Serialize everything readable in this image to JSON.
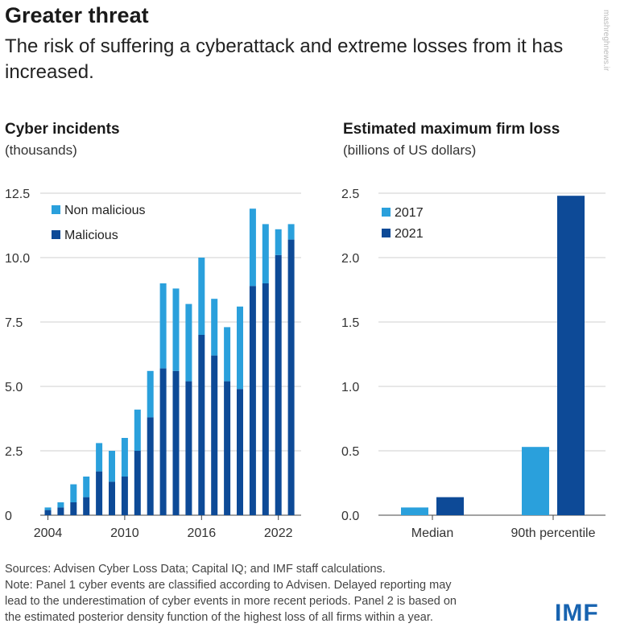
{
  "title": "Greater threat",
  "subtitle": "The risk of suffering a cyberattack and extreme losses from it has increased.",
  "watermark": "mashreghnews.ir",
  "colors": {
    "light": "#2aa0dc",
    "dark": "#0d4a97",
    "grid": "#cfcfcf",
    "axis": "#444444"
  },
  "chart_data": [
    {
      "type": "bar",
      "stacked": true,
      "title": "Cyber incidents",
      "ylabel": "(thousands)",
      "x": [
        2004,
        2005,
        2006,
        2007,
        2008,
        2009,
        2010,
        2011,
        2012,
        2013,
        2014,
        2015,
        2016,
        2017,
        2018,
        2019,
        2020,
        2021,
        2022,
        2023
      ],
      "xticks": [
        2004,
        2010,
        2016,
        2022
      ],
      "yticks": [
        "0",
        "2.5",
        "5.0",
        "7.5",
        "10.0",
        "12.5"
      ],
      "ylim": [
        0,
        12.5
      ],
      "legend": [
        "Non malicious",
        "Malicious"
      ],
      "legend_position": "top-left",
      "series": [
        {
          "name": "Malicious",
          "values": [
            0.2,
            0.3,
            0.5,
            0.7,
            1.7,
            1.3,
            1.5,
            2.5,
            3.8,
            5.7,
            5.6,
            5.2,
            7.0,
            6.2,
            5.2,
            4.9,
            8.9,
            9.0,
            10.1,
            10.7
          ]
        },
        {
          "name": "Non malicious",
          "values": [
            0.1,
            0.2,
            0.7,
            0.8,
            1.1,
            1.2,
            1.5,
            1.6,
            1.8,
            3.3,
            3.2,
            3.0,
            3.0,
            2.2,
            2.1,
            3.2,
            3.0,
            2.3,
            1.0,
            0.6
          ]
        }
      ]
    },
    {
      "type": "bar",
      "title": "Estimated maximum firm loss",
      "ylabel": "(billions of US dollars)",
      "categories": [
        "Median",
        "90th percentile"
      ],
      "yticks": [
        "0.0",
        "0.5",
        "1.0",
        "1.5",
        "2.0",
        "2.5"
      ],
      "ylim": [
        0,
        2.5
      ],
      "legend": [
        "2017",
        "2021"
      ],
      "legend_position": "top-left",
      "series": [
        {
          "name": "2017",
          "values": [
            0.06,
            0.53
          ]
        },
        {
          "name": "2021",
          "values": [
            0.14,
            2.48
          ]
        }
      ]
    }
  ],
  "footer": {
    "sources": "Sources: Advisen Cyber Loss Data; Capital IQ; and IMF staff calculations.",
    "note1": "Note: Panel 1 cyber events are classified according to Advisen. Delayed reporting may",
    "note2": "lead to the underestimation of cyber events in more recent periods. Panel 2 is based on",
    "note3": "the estimated posterior density function of the highest loss of all firms within a year."
  },
  "logo": "IMF"
}
